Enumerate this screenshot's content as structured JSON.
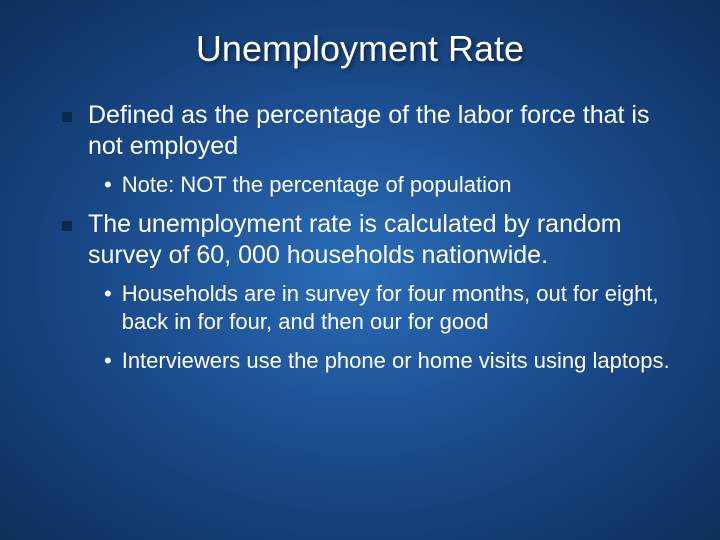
{
  "slide": {
    "title": "Unemployment Rate",
    "background_gradient": [
      "#2a6db8",
      "#1a4a8a",
      "#0d2f5a"
    ],
    "text_color": "#ffffff",
    "square_bullet_color": "#0a2850",
    "title_fontsize": 36,
    "level1_fontsize": 25,
    "level2_fontsize": 22,
    "items": [
      {
        "level": 1,
        "text": "Defined as the percentage of the labor force that is not employed"
      },
      {
        "level": 2,
        "text": "Note: NOT the percentage of population"
      },
      {
        "level": 1,
        "text": "The unemployment rate is calculated by random survey of 60, 000 households nationwide."
      },
      {
        "level": 2,
        "text": "Households are in survey for four months, out for eight, back in for four, and then our for good"
      },
      {
        "level": 2,
        "text": "Interviewers use the phone or home visits using laptops."
      }
    ]
  }
}
